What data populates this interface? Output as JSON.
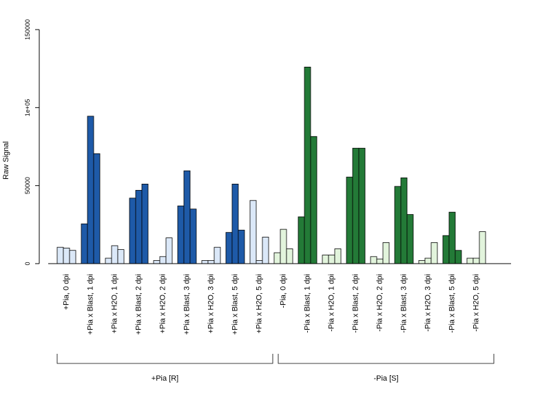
{
  "chart_data": {
    "type": "bar",
    "ylabel": "Raw Signal",
    "ylim": [
      0,
      150000
    ],
    "yticks": [
      {
        "value": 0,
        "label": "0"
      },
      {
        "value": 50000,
        "label": "50000"
      },
      {
        "value": 100000,
        "label": "1e+05"
      },
      {
        "value": 150000,
        "label": "150000"
      }
    ],
    "colors": {
      "light_blue": "#dbe8f8",
      "dark_blue": "#1e5aa8",
      "light_green": "#e2f4dc",
      "dark_green": "#237a37",
      "stroke": "#000000"
    },
    "groups": [
      {
        "label": "+Pia [R]"
      },
      {
        "label": "-Pia [S]"
      }
    ],
    "categories": [
      {
        "label": "+Pia, 0 dpi",
        "values": [
          10500,
          10000,
          8500
        ],
        "fill": "light_blue"
      },
      {
        "label": "+Pia x Blast, 1 dpi",
        "values": [
          25500,
          94500,
          70500
        ],
        "fill": "dark_blue"
      },
      {
        "label": "+Pia x H2O, 1 dpi",
        "values": [
          3500,
          11500,
          9000
        ],
        "fill": "light_blue"
      },
      {
        "label": "+Pia x Blast, 2 dpi",
        "values": [
          42000,
          47000,
          51000
        ],
        "fill": "dark_blue"
      },
      {
        "label": "+Pia x H2O, 2 dpi",
        "values": [
          2000,
          4500,
          16500
        ],
        "fill": "light_blue"
      },
      {
        "label": "+Pia x Blast, 3 dpi",
        "values": [
          37000,
          59500,
          35000
        ],
        "fill": "dark_blue"
      },
      {
        "label": "+Pia x H2O, 3 dpi",
        "values": [
          2000,
          2000,
          10500
        ],
        "fill": "light_blue"
      },
      {
        "label": "+Pia x Blast, 5 dpi",
        "values": [
          20000,
          51000,
          21500
        ],
        "fill": "dark_blue"
      },
      {
        "label": "+Pia x H2O, 5 dpi",
        "values": [
          40500,
          2000,
          17000
        ],
        "fill": "light_blue"
      },
      {
        "label": "-Pia, 0 dpi",
        "values": [
          7000,
          22000,
          9500
        ],
        "fill": "light_green"
      },
      {
        "label": "-Pia x Blast, 1 dpi",
        "values": [
          30000,
          126000,
          81500
        ],
        "fill": "dark_green"
      },
      {
        "label": "-Pia x H2O, 1 dpi",
        "values": [
          5500,
          5500,
          9500
        ],
        "fill": "light_green"
      },
      {
        "label": "-Pia x Blast, 2 dpi",
        "values": [
          55500,
          74000,
          74000
        ],
        "fill": "dark_green"
      },
      {
        "label": "-Pia x H2O, 2 dpi",
        "values": [
          4500,
          3000,
          13500
        ],
        "fill": "light_green"
      },
      {
        "label": "-Pia x Blast, 3 dpi",
        "values": [
          49500,
          55000,
          31500
        ],
        "fill": "dark_green"
      },
      {
        "label": "-Pia x H2O, 3 dpi",
        "values": [
          2000,
          3500,
          13500
        ],
        "fill": "light_green"
      },
      {
        "label": "-Pia x Blast, 5 dpi",
        "values": [
          18000,
          33000,
          8500
        ],
        "fill": "dark_green"
      },
      {
        "label": "-Pia x H2O, 5 dpi",
        "values": [
          3500,
          3500,
          20500
        ],
        "fill": "light_green"
      }
    ]
  }
}
